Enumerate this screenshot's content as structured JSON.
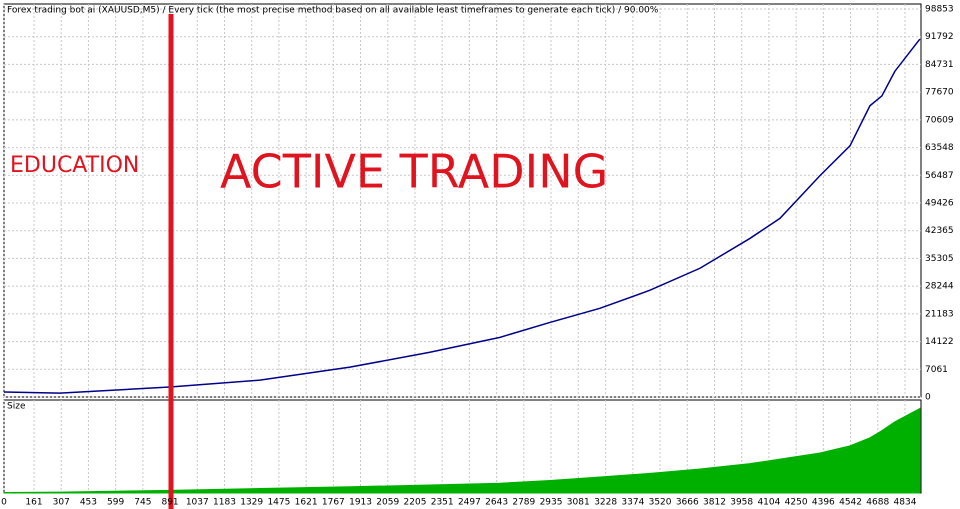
{
  "chart_data": [
    {
      "type": "line",
      "title": "Forex trading bot ai (XAUUSD,M5) / Every tick (the most precise method based on all available least timeframes to generate each tick) / 90.00%",
      "annotations": [
        "EDUCATION",
        "ACTIVE TRADING"
      ],
      "x": [
        0,
        300,
        890,
        1373,
        1856,
        2285,
        2661,
        2929,
        3197,
        3466,
        3734,
        4002,
        4163,
        4378,
        4539,
        4646,
        4710,
        4780,
        4914
      ],
      "series": [
        {
          "color": "#00008b",
          "values": [
            1270,
            1000,
            2540,
            4300,
            7600,
            11400,
            15200,
            19000,
            22600,
            27200,
            32800,
            40400,
            45500,
            56400,
            64000,
            74200,
            76700,
            83000,
            91200
          ]
        }
      ],
      "xlim": [
        0,
        4920
      ],
      "ylim": [
        0,
        98853
      ],
      "yticks": [
        0,
        7061,
        14122,
        21183,
        28244,
        35305,
        42365,
        49426,
        56487,
        63548,
        70609,
        77670,
        84731,
        91792,
        98853
      ],
      "grid": true
    },
    {
      "type": "area",
      "title": "Size",
      "x": [
        0,
        300,
        890,
        1373,
        1856,
        2285,
        2661,
        2929,
        3197,
        3466,
        3734,
        4002,
        4163,
        4378,
        4539,
        4646,
        4710,
        4780,
        4914
      ],
      "series": [
        {
          "color": "#00b000",
          "values": [
            0.5,
            1,
            3,
            5,
            7,
            9,
            11,
            14,
            18,
            22,
            27,
            33,
            38,
            45,
            53,
            62,
            70,
            80,
            95
          ]
        }
      ],
      "xlim": [
        0,
        4920
      ],
      "ylim": [
        0,
        100
      ],
      "xticks": [
        0,
        161,
        307,
        453,
        599,
        745,
        891,
        1037,
        1183,
        1329,
        1475,
        1621,
        1767,
        1913,
        2059,
        2205,
        2351,
        2497,
        2643,
        2789,
        2935,
        3081,
        3228,
        3374,
        3520,
        3666,
        3812,
        3958,
        4104,
        4250,
        4396,
        4542,
        4688,
        4834
      ],
      "grid": true
    }
  ]
}
